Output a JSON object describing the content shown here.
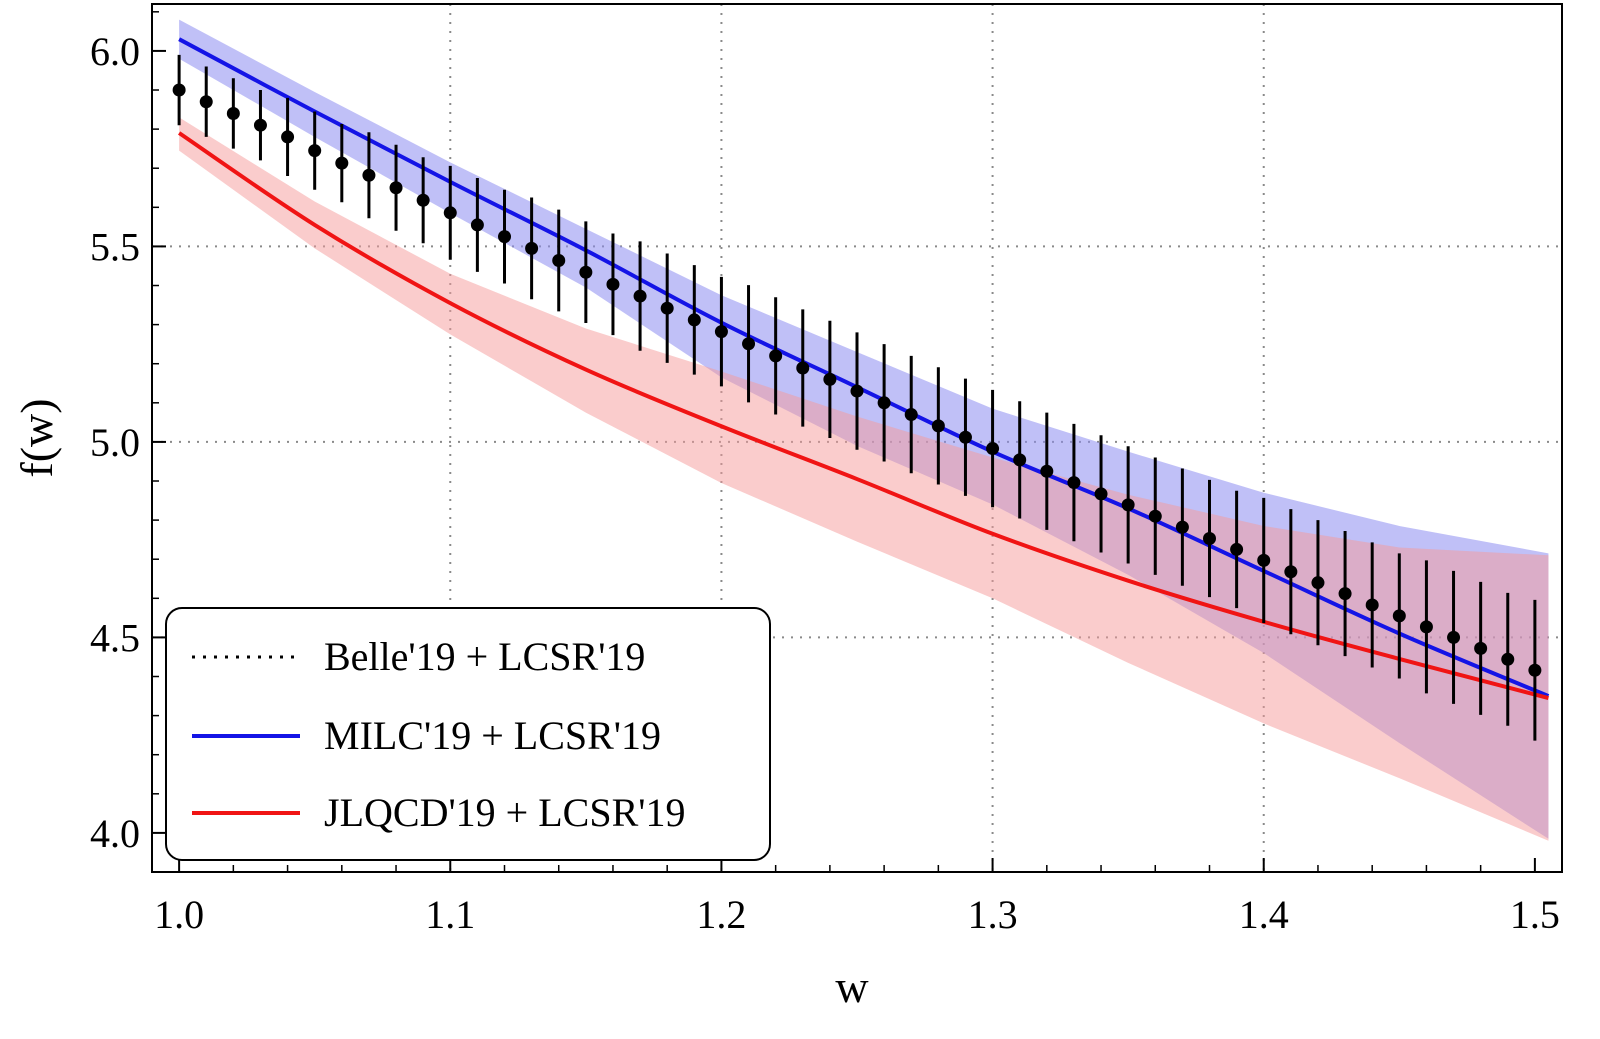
{
  "chart_data": {
    "type": "line",
    "title": "",
    "xlabel": "w",
    "ylabel": "f(w)",
    "xlim": [
      0.99,
      1.51
    ],
    "ylim": [
      3.9,
      6.12
    ],
    "xticks": [
      {
        "value": 1.0,
        "label": "1.0"
      },
      {
        "value": 1.1,
        "label": "1.1"
      },
      {
        "value": 1.2,
        "label": "1.2"
      },
      {
        "value": 1.3,
        "label": "1.3"
      },
      {
        "value": 1.4,
        "label": "1.4"
      },
      {
        "value": 1.5,
        "label": "1.5"
      }
    ],
    "yticks": [
      {
        "value": 4.0,
        "label": "4.0"
      },
      {
        "value": 4.5,
        "label": "4.5"
      },
      {
        "value": 5.0,
        "label": "5.0"
      },
      {
        "value": 5.5,
        "label": "5.5"
      },
      {
        "value": 6.0,
        "label": "6.0"
      }
    ],
    "grid": "dotted",
    "legend_position": "bottom-left",
    "series": [
      {
        "name": "Belle'19 + LCSR'19",
        "kind": "errorbar",
        "color": "#000000",
        "x_start": 1.0,
        "x_step": 0.01,
        "y": [
          5.9,
          5.87,
          5.84,
          5.81,
          5.78,
          5.745,
          5.713,
          5.682,
          5.65,
          5.618,
          5.586,
          5.555,
          5.525,
          5.495,
          5.464,
          5.434,
          5.403,
          5.373,
          5.342,
          5.312,
          5.282,
          5.251,
          5.22,
          5.189,
          5.16,
          5.13,
          5.1,
          5.07,
          5.041,
          5.012,
          4.983,
          4.954,
          4.925,
          4.896,
          4.867,
          4.839,
          4.81,
          4.782,
          4.753,
          4.725,
          4.697,
          4.668,
          4.64,
          4.612,
          4.583,
          4.555,
          4.527,
          4.5,
          4.472,
          4.444,
          4.416
        ],
        "err": [
          0.09,
          0.09,
          0.09,
          0.09,
          0.1,
          0.1,
          0.1,
          0.11,
          0.11,
          0.11,
          0.12,
          0.12,
          0.12,
          0.13,
          0.13,
          0.13,
          0.13,
          0.14,
          0.14,
          0.14,
          0.14,
          0.15,
          0.15,
          0.15,
          0.15,
          0.15,
          0.15,
          0.15,
          0.15,
          0.15,
          0.15,
          0.15,
          0.15,
          0.15,
          0.15,
          0.15,
          0.15,
          0.15,
          0.15,
          0.15,
          0.16,
          0.16,
          0.16,
          0.16,
          0.16,
          0.16,
          0.17,
          0.17,
          0.17,
          0.17,
          0.18
        ]
      },
      {
        "name": "MILC'19 + LCSR'19",
        "kind": "line-band",
        "color": "#1414e6",
        "band_color": "#8c8cf0",
        "x": [
          1.0,
          1.05,
          1.1,
          1.15,
          1.2,
          1.25,
          1.3,
          1.35,
          1.4,
          1.45,
          1.505
        ],
        "y": [
          6.03,
          5.845,
          5.665,
          5.49,
          5.305,
          5.14,
          4.975,
          4.83,
          4.67,
          4.51,
          4.35
        ],
        "upper": [
          6.08,
          5.895,
          5.715,
          5.545,
          5.375,
          5.23,
          5.085,
          4.975,
          4.87,
          4.785,
          4.715
        ],
        "lower": [
          5.98,
          5.78,
          5.585,
          5.395,
          5.165,
          4.99,
          4.84,
          4.66,
          4.46,
          4.23,
          3.985
        ]
      },
      {
        "name": "JLQCD'19 + LCSR'19",
        "kind": "line-band",
        "color": "#f01414",
        "band_color": "#f59a9a",
        "x": [
          1.0,
          1.05,
          1.1,
          1.15,
          1.2,
          1.25,
          1.3,
          1.35,
          1.4,
          1.45,
          1.505
        ],
        "y": [
          5.79,
          5.555,
          5.355,
          5.185,
          5.04,
          4.905,
          4.765,
          4.645,
          4.54,
          4.445,
          4.345
        ],
        "upper": [
          5.83,
          5.615,
          5.43,
          5.29,
          5.18,
          5.065,
          4.96,
          4.865,
          4.785,
          4.73,
          4.71
        ],
        "lower": [
          5.745,
          5.495,
          5.275,
          5.075,
          4.895,
          4.745,
          4.6,
          4.435,
          4.28,
          4.14,
          3.98
        ]
      }
    ],
    "legend": [
      {
        "label": "Belle'19 + LCSR'19",
        "style": "dotted",
        "color": "#000000"
      },
      {
        "label": "MILC'19 + LCSR'19",
        "style": "solid",
        "color": "#1414e6"
      },
      {
        "label": "JLQCD'19 + LCSR'19",
        "style": "solid",
        "color": "#f01414"
      }
    ]
  }
}
